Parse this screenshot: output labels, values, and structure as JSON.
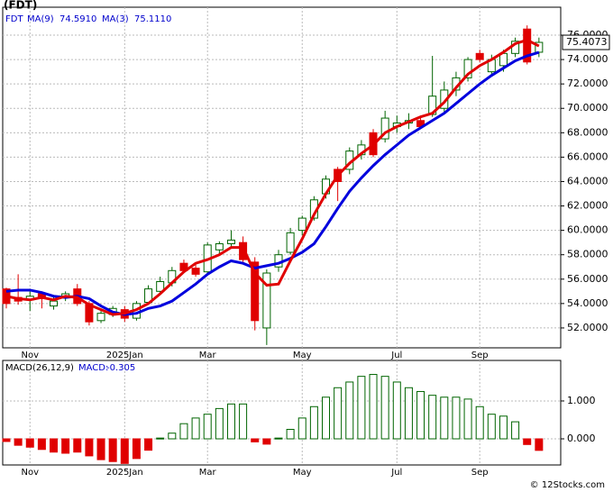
{
  "chart_data": [
    {
      "type": "candlestick",
      "title": "(FDT)",
      "ticker": "FDT",
      "categories": [
        null,
        null,
        "Nov",
        null,
        null,
        null,
        null,
        null,
        null,
        null,
        "2025Jan",
        null,
        null,
        null,
        null,
        null,
        null,
        "Mar",
        null,
        null,
        null,
        null,
        null,
        null,
        null,
        "May",
        null,
        null,
        null,
        null,
        null,
        null,
        null,
        "Jul",
        null,
        null,
        null,
        null,
        null,
        null,
        "Sep",
        null,
        null,
        null,
        null,
        null
      ],
      "open": [
        55.2,
        54.5,
        54.3,
        54.8,
        53.8,
        54.5,
        55.2,
        54.0,
        52.6,
        53.1,
        53.5,
        52.8,
        54.1,
        55.0,
        55.7,
        57.3,
        56.9,
        56.6,
        58.4,
        58.9,
        59.0,
        57.4,
        52.0,
        57.0,
        58.2,
        60.0,
        61.0,
        63.0,
        65.0,
        65.0,
        66.2,
        68.0,
        67.5,
        68.5,
        68.8,
        69.0,
        69.5,
        70.0,
        71.5,
        72.5,
        74.5,
        73.0,
        73.5,
        74.5,
        76.5,
        74.6
      ],
      "high": [
        55.3,
        56.4,
        55.0,
        55.0,
        54.6,
        55.0,
        55.6,
        54.2,
        53.5,
        53.8,
        53.8,
        54.2,
        55.5,
        56.2,
        57.0,
        57.6,
        57.2,
        59.0,
        59.1,
        60.0,
        59.5,
        57.8,
        56.8,
        58.4,
        60.2,
        61.2,
        62.8,
        64.5,
        65.2,
        66.8,
        67.4,
        68.3,
        69.8,
        69.4,
        69.6,
        69.4,
        74.3,
        72.2,
        73.0,
        74.2,
        74.8,
        74.4,
        74.8,
        75.8,
        76.8,
        75.8
      ],
      "low": [
        53.6,
        53.9,
        53.4,
        53.6,
        53.5,
        54.2,
        53.8,
        52.2,
        52.4,
        52.9,
        52.5,
        52.6,
        53.9,
        54.8,
        55.4,
        56.5,
        56.2,
        56.4,
        58.0,
        58.5,
        57.4,
        51.8,
        50.6,
        56.6,
        58.0,
        59.6,
        60.8,
        62.6,
        62.4,
        64.6,
        65.8,
        66.0,
        67.2,
        68.0,
        68.3,
        68.3,
        69.3,
        69.6,
        71.0,
        72.2,
        73.8,
        72.6,
        73.0,
        74.2,
        73.6,
        74.2
      ],
      "close": [
        54.0,
        54.2,
        54.6,
        54.4,
        54.2,
        54.8,
        54.0,
        52.5,
        53.2,
        53.6,
        52.8,
        54.0,
        55.2,
        55.8,
        56.7,
        56.7,
        56.4,
        58.8,
        58.9,
        59.2,
        57.6,
        52.6,
        56.5,
        58.0,
        59.8,
        61.0,
        62.5,
        64.2,
        64.0,
        66.5,
        67.0,
        66.2,
        69.2,
        68.8,
        69.0,
        68.5,
        71.0,
        71.5,
        72.5,
        74.0,
        74.0,
        74.0,
        74.5,
        75.5,
        73.8,
        75.4073
      ],
      "up_color": "#006400",
      "down_color": "#e00000",
      "series": [
        {
          "name": "MA(9)",
          "color": "#0000dd",
          "last_label": "74.5910",
          "values": [
            55.0,
            55.1,
            55.1,
            54.9,
            54.6,
            54.5,
            54.6,
            54.4,
            53.8,
            53.3,
            53.1,
            53.2,
            53.6,
            53.8,
            54.2,
            54.9,
            55.6,
            56.4,
            57.0,
            57.5,
            57.3,
            56.9,
            57.1,
            57.3,
            57.7,
            58.2,
            58.9,
            60.3,
            61.8,
            63.2,
            64.3,
            65.3,
            66.2,
            67.0,
            67.8,
            68.4,
            69.0,
            69.6,
            70.4,
            71.2,
            72.0,
            72.7,
            73.3,
            73.9,
            74.3,
            74.591
          ]
        },
        {
          "name": "MA(3)",
          "color": "#e00000",
          "last_label": "75.1110",
          "values": [
            54.6,
            54.4,
            54.3,
            54.5,
            54.3,
            54.6,
            54.5,
            53.9,
            53.5,
            53.1,
            53.2,
            53.5,
            54.0,
            54.8,
            55.7,
            56.6,
            57.3,
            57.6,
            58.0,
            58.6,
            58.6,
            56.5,
            55.5,
            55.6,
            57.5,
            59.3,
            61.3,
            63.0,
            64.5,
            65.5,
            66.3,
            67.0,
            68.0,
            68.5,
            68.9,
            69.3,
            69.6,
            70.5,
            71.7,
            72.8,
            73.5,
            74.0,
            74.6,
            75.3,
            75.6,
            75.111
          ]
        }
      ],
      "ylim": [
        50.37,
        78.29
      ],
      "yticks": [
        {
          "value": 52,
          "label": "52.0000"
        },
        {
          "value": 54,
          "label": "54.0000"
        },
        {
          "value": 56,
          "label": "56.0000"
        },
        {
          "value": 58,
          "label": "58.0000"
        },
        {
          "value": 60,
          "label": "60.0000"
        },
        {
          "value": 62,
          "label": "62.0000"
        },
        {
          "value": 64,
          "label": "64.0000"
        },
        {
          "value": 66,
          "label": "66.0000"
        },
        {
          "value": 68,
          "label": "68.0000"
        },
        {
          "value": 70,
          "label": "70.0000"
        },
        {
          "value": 72,
          "label": "72.0000"
        },
        {
          "value": 74,
          "label": "74.0000"
        },
        {
          "value": 76,
          "label": "76.0000"
        }
      ],
      "grid": true
    },
    {
      "type": "bar",
      "title": "MACD(26,12,9)",
      "current_label": "MACD:",
      "values": [
        -0.07,
        -0.17,
        -0.22,
        -0.28,
        -0.35,
        -0.38,
        -0.35,
        -0.45,
        -0.55,
        -0.6,
        -0.65,
        -0.52,
        -0.3,
        0.02,
        0.15,
        0.4,
        0.55,
        0.65,
        0.8,
        0.92,
        0.92,
        -0.08,
        -0.14,
        0.02,
        0.25,
        0.55,
        0.85,
        1.1,
        1.35,
        1.5,
        1.65,
        1.7,
        1.65,
        1.5,
        1.35,
        1.25,
        1.15,
        1.1,
        1.1,
        1.05,
        0.85,
        0.65,
        0.6,
        0.45,
        -0.15,
        -0.305
      ],
      "up_color": "#006400",
      "down_color": "#e00000",
      "ylim": [
        -0.69,
        2.07
      ],
      "yticks": [
        {
          "value": 0,
          "label": "0.000"
        },
        {
          "value": 1,
          "label": "1.000"
        }
      ],
      "grid": true
    }
  ],
  "footer": "© 12Stocks.com"
}
